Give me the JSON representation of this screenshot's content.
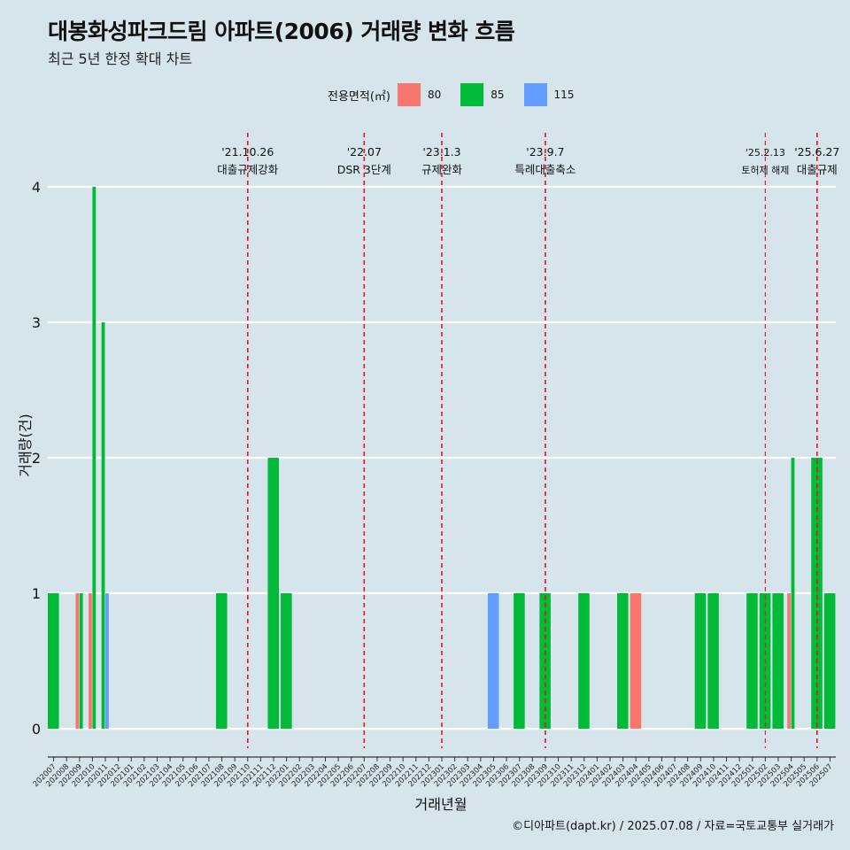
{
  "title": "대봉화성파크드림 아파트(2006) 거래량 변화 흐름",
  "subtitle": "최근 5년 한정 확대 차트",
  "caption": "©디아파트(dapt.kr) / 2025.07.08 / 자료=국토교통부 실거래가",
  "legend": {
    "title": "전용면적(㎡)",
    "items": [
      {
        "label": "80",
        "color": "#f8766d"
      },
      {
        "label": "85",
        "color": "#00ba38"
      },
      {
        "label": "115",
        "color": "#619cff"
      }
    ]
  },
  "chart_data": {
    "type": "bar",
    "stacked": false,
    "xlabel": "거래년월",
    "ylabel": "거래량(건)",
    "ylim": [
      0,
      4
    ],
    "yticks": [
      0,
      1,
      2,
      3,
      4
    ],
    "grid": true,
    "legend_position": "top",
    "categories": [
      "202007",
      "202008",
      "202009",
      "202010",
      "202011",
      "202012",
      "202101",
      "202102",
      "202103",
      "202104",
      "202105",
      "202106",
      "202107",
      "202108",
      "202109",
      "202110",
      "202111",
      "202112",
      "202201",
      "202202",
      "202203",
      "202204",
      "202205",
      "202206",
      "202207",
      "202208",
      "202209",
      "202210",
      "202211",
      "202212",
      "202301",
      "202302",
      "202303",
      "202304",
      "202305",
      "202306",
      "202307",
      "202308",
      "202309",
      "202310",
      "202311",
      "202312",
      "202401",
      "202402",
      "202403",
      "202404",
      "202405",
      "202406",
      "202407",
      "202408",
      "202409",
      "202410",
      "202411",
      "202412",
      "202501",
      "202502",
      "202503",
      "202504",
      "202505",
      "202506",
      "202507"
    ],
    "series": [
      {
        "name": "80",
        "color": "#f8766d",
        "values": [
          0,
          0,
          1,
          1,
          0,
          0,
          0,
          0,
          0,
          0,
          0,
          0,
          0,
          0,
          0,
          0,
          0,
          0,
          0,
          0,
          0,
          0,
          0,
          0,
          0,
          0,
          0,
          0,
          0,
          0,
          0,
          0,
          0,
          0,
          0,
          0,
          0,
          0,
          0,
          0,
          0,
          0,
          0,
          0,
          0,
          1,
          0,
          0,
          0,
          0,
          0,
          0,
          0,
          0,
          0,
          0,
          0,
          1,
          0,
          0,
          0
        ]
      },
      {
        "name": "85",
        "color": "#00ba38",
        "values": [
          1,
          0,
          1,
          4,
          3,
          0,
          0,
          0,
          0,
          0,
          0,
          0,
          0,
          1,
          0,
          0,
          0,
          2,
          1,
          0,
          0,
          0,
          0,
          0,
          0,
          0,
          0,
          0,
          0,
          0,
          0,
          0,
          0,
          0,
          0,
          0,
          1,
          0,
          1,
          0,
          0,
          1,
          0,
          0,
          1,
          0,
          0,
          0,
          0,
          0,
          1,
          1,
          0,
          0,
          1,
          1,
          1,
          2,
          0,
          2,
          1
        ]
      },
      {
        "name": "115",
        "color": "#619cff",
        "values": [
          0,
          0,
          0,
          0,
          1,
          0,
          0,
          0,
          0,
          0,
          0,
          0,
          0,
          0,
          0,
          0,
          0,
          0,
          0,
          0,
          0,
          0,
          0,
          0,
          0,
          0,
          0,
          0,
          0,
          0,
          0,
          0,
          0,
          0,
          1,
          0,
          0,
          0,
          0,
          0,
          0,
          0,
          0,
          0,
          0,
          0,
          0,
          0,
          0,
          0,
          0,
          0,
          0,
          0,
          0,
          0,
          0,
          0,
          0,
          0,
          0
        ]
      }
    ],
    "annotations": [
      {
        "x": "202110",
        "date": "'21.10.26",
        "label": "대출규제강화",
        "size": "normal"
      },
      {
        "x": "202207",
        "date": "'22.07",
        "label": "DSR 3단계",
        "size": "normal"
      },
      {
        "x": "202301",
        "date": "'23.1.3",
        "label": "규제완화",
        "size": "normal"
      },
      {
        "x": "202309",
        "date": "'23.9.7",
        "label": "특례대출축소",
        "size": "normal"
      },
      {
        "x": "202502",
        "date": "'25.2.13",
        "label": "토허제 해제",
        "size": "small"
      },
      {
        "x": "202506",
        "date": "'25.6.27",
        "label": "대출규제",
        "size": "normal"
      }
    ]
  }
}
